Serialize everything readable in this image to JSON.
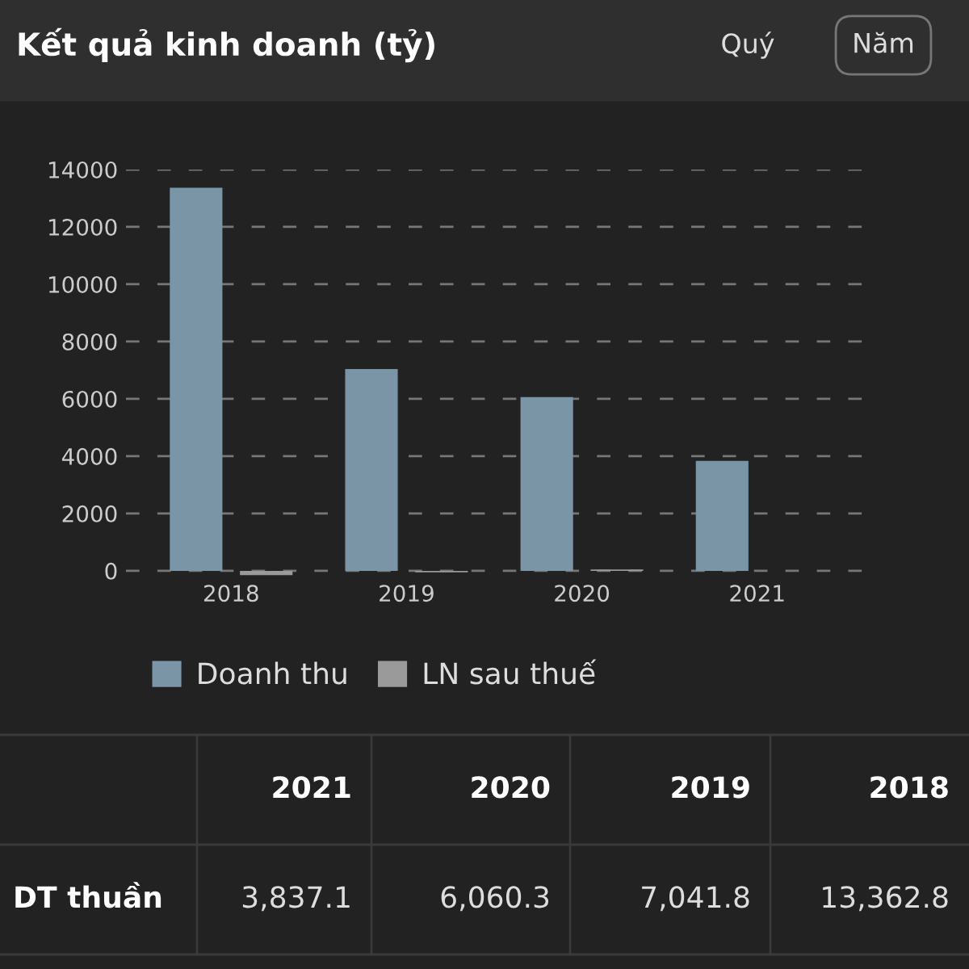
{
  "chart_data": {
    "type": "bar",
    "title": "Kết quả kinh doanh (tỷ)",
    "categories": [
      "2018",
      "2019",
      "2020",
      "2021"
    ],
    "series": [
      {
        "name": "Doanh thu",
        "color": "#7a95a6",
        "values": [
          13362.8,
          7041.8,
          6060.3,
          3837.1
        ]
      },
      {
        "name": "LN sau thuế",
        "color": "#9a9a9a",
        "values": [
          -150,
          -50,
          50,
          null
        ]
      }
    ],
    "ylim": [
      -200,
      14000
    ],
    "yticks": [
      0,
      2000,
      4000,
      6000,
      8000,
      10000,
      12000,
      14000
    ],
    "grid": "y",
    "legend": "bottom",
    "annotations": [
      "Quý",
      "Năm",
      "DT thuần",
      "3,837.1",
      "6,060.3",
      "7,041.8",
      "13,362.8"
    ]
  }
}
